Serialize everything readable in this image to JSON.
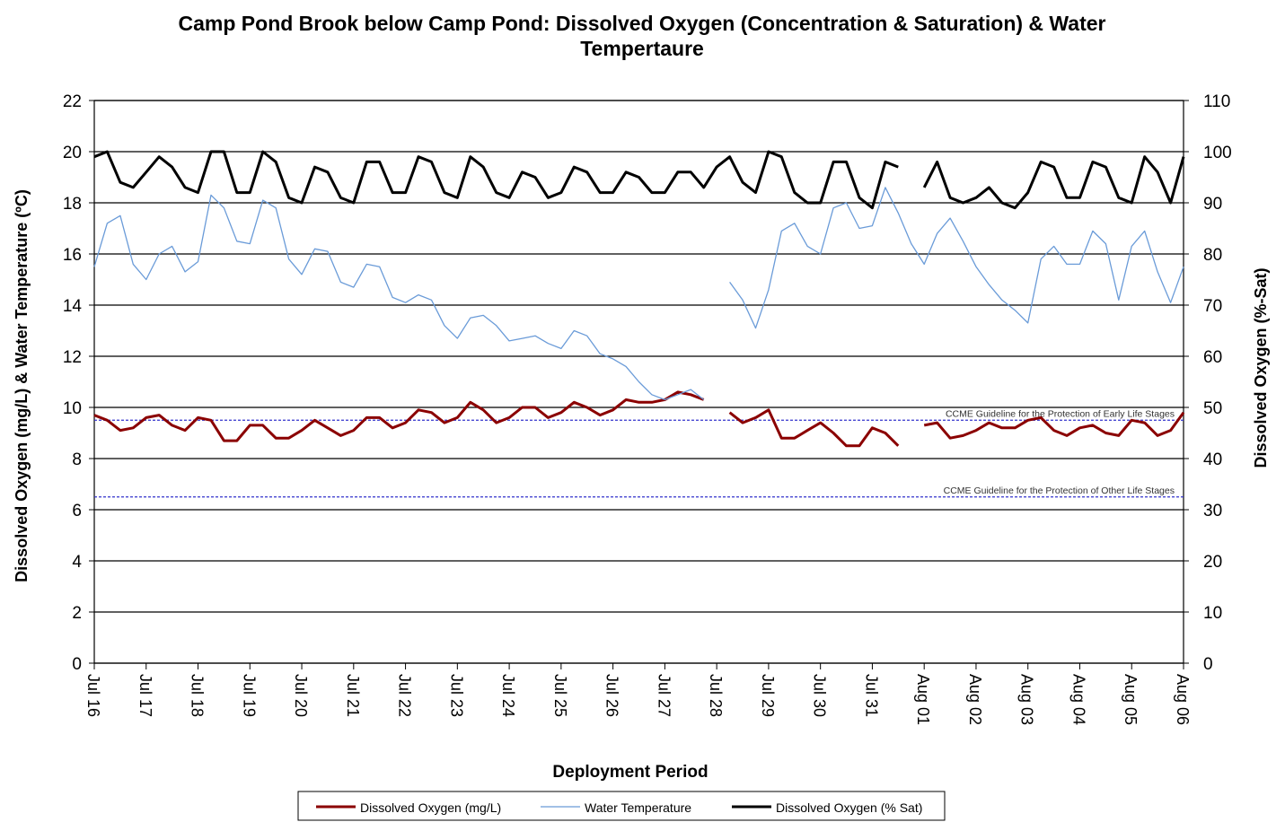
{
  "chart_data": {
    "type": "line",
    "title": "Camp Pond Brook below Camp Pond: Dissolved Oxygen (Concentration & Saturation) & Water Tempertaure",
    "xlabel": "Deployment Period",
    "ylabel": "Dissolved  Oxygen (mg/L) & Water Temperature (ºC)",
    "y2label": "Dissolved  Oxygen (%-Sat)",
    "xlim": [
      0,
      21
    ],
    "xticks": [
      {
        "value": 0,
        "label": "Jul 16"
      },
      {
        "value": 1,
        "label": "Jul 17"
      },
      {
        "value": 2,
        "label": "Jul 18"
      },
      {
        "value": 3,
        "label": "Jul 19"
      },
      {
        "value": 4,
        "label": "Jul 20"
      },
      {
        "value": 5,
        "label": "Jul 21"
      },
      {
        "value": 6,
        "label": "Jul 22"
      },
      {
        "value": 7,
        "label": "Jul 23"
      },
      {
        "value": 8,
        "label": "Jul 24"
      },
      {
        "value": 9,
        "label": "Jul 25"
      },
      {
        "value": 10,
        "label": "Jul 26"
      },
      {
        "value": 11,
        "label": "Jul 27"
      },
      {
        "value": 12,
        "label": "Jul 28"
      },
      {
        "value": 13,
        "label": "Jul 29"
      },
      {
        "value": 14,
        "label": "Jul 30"
      },
      {
        "value": 15,
        "label": "Jul 31"
      },
      {
        "value": 16,
        "label": "Aug 01"
      },
      {
        "value": 17,
        "label": "Aug 02"
      },
      {
        "value": 18,
        "label": "Aug 03"
      },
      {
        "value": 19,
        "label": "Aug 04"
      },
      {
        "value": 20,
        "label": "Aug 05"
      },
      {
        "value": 21,
        "label": "Aug 06"
      }
    ],
    "ylim": [
      0,
      22
    ],
    "yticks": [
      0,
      2,
      4,
      6,
      8,
      10,
      12,
      14,
      16,
      18,
      20,
      22
    ],
    "y2lim": [
      0,
      110
    ],
    "y2ticks": [
      0,
      10,
      20,
      30,
      40,
      50,
      60,
      70,
      80,
      90,
      100,
      110
    ],
    "grid": true,
    "x": [
      0,
      0.25,
      0.5,
      0.75,
      1,
      1.25,
      1.5,
      1.75,
      2,
      2.25,
      2.5,
      2.75,
      3,
      3.25,
      3.5,
      3.75,
      4,
      4.25,
      4.5,
      4.75,
      5,
      5.25,
      5.5,
      5.75,
      6,
      6.25,
      6.5,
      6.75,
      7,
      7.25,
      7.5,
      7.75,
      8,
      8.25,
      8.5,
      8.75,
      9,
      9.25,
      9.5,
      9.75,
      10,
      10.25,
      10.5,
      10.75,
      11,
      11.25,
      11.5,
      11.75,
      12,
      12.25,
      12.5,
      12.75,
      13,
      13.25,
      13.5,
      13.75,
      14,
      14.25,
      14.5,
      14.75,
      15,
      15.25,
      15.5,
      15.75,
      16,
      16.25,
      16.5,
      16.75,
      17,
      17.25,
      17.5,
      17.75,
      18,
      18.25,
      18.5,
      18.75,
      19,
      19.25,
      19.5,
      19.75,
      20,
      20.25,
      20.5,
      20.75,
      21
    ],
    "series": [
      {
        "name": "Dissolved Oxygen (mg/L)",
        "color": "#8b0000",
        "width": 3,
        "values": [
          9.7,
          9.5,
          9.1,
          9.2,
          9.6,
          9.7,
          9.3,
          9.1,
          9.6,
          9.5,
          8.7,
          8.7,
          9.3,
          9.3,
          8.8,
          8.8,
          9.1,
          9.5,
          9.2,
          8.9,
          9.1,
          9.6,
          9.6,
          9.2,
          9.4,
          9.9,
          9.8,
          9.4,
          9.6,
          10.2,
          9.9,
          9.4,
          9.6,
          10.0,
          10.0,
          9.6,
          9.8,
          10.2,
          10.0,
          9.7,
          9.9,
          10.3,
          10.2,
          10.2,
          10.3,
          10.6,
          10.5,
          10.3,
          null,
          9.8,
          9.4,
          9.6,
          9.9,
          8.8,
          8.8,
          9.1,
          9.4,
          9.0,
          8.5,
          8.5,
          9.2,
          9.0,
          8.5,
          null,
          9.3,
          9.4,
          8.8,
          8.9,
          9.1,
          9.4,
          9.2,
          9.2,
          9.5,
          9.6,
          9.1,
          8.9,
          9.2,
          9.3,
          9.0,
          8.9,
          9.5,
          9.4,
          8.9,
          9.1,
          9.8
        ]
      },
      {
        "name": "Water Temperature",
        "color": "#6a9bd8",
        "width": 1.3,
        "values": [
          15.5,
          17.2,
          17.5,
          15.6,
          15.0,
          16.0,
          16.3,
          15.3,
          15.7,
          18.3,
          17.8,
          16.5,
          16.4,
          18.1,
          17.8,
          15.8,
          15.2,
          16.2,
          16.1,
          14.9,
          14.7,
          15.6,
          15.5,
          14.3,
          14.1,
          14.4,
          14.2,
          13.2,
          12.7,
          13.5,
          13.6,
          13.2,
          12.6,
          12.7,
          12.8,
          12.5,
          12.3,
          13.0,
          12.8,
          12.1,
          11.9,
          11.6,
          11.0,
          10.5,
          10.3,
          10.5,
          10.7,
          10.3,
          null,
          14.9,
          14.2,
          13.1,
          14.6,
          16.9,
          17.2,
          16.3,
          16.0,
          17.8,
          18.0,
          17.0,
          17.1,
          18.6,
          17.6,
          16.4,
          15.6,
          16.8,
          17.4,
          16.5,
          15.5,
          14.8,
          14.2,
          13.8,
          13.3,
          15.8,
          16.3,
          15.6,
          15.6,
          16.9,
          16.4,
          14.2,
          16.3,
          16.9,
          15.3,
          14.1,
          15.5
        ]
      },
      {
        "name": "Dissolved Oxygen (% Sat)",
        "color": "#000000",
        "width": 3,
        "axis": "y2",
        "values": [
          99,
          100,
          94,
          93,
          96,
          99,
          97,
          93,
          92,
          100,
          100,
          92,
          92,
          100,
          98,
          91,
          90,
          97,
          96,
          91,
          90,
          98,
          98,
          92,
          92,
          99,
          98,
          92,
          91,
          99,
          97,
          92,
          91,
          96,
          95,
          91,
          92,
          97,
          96,
          92,
          92,
          96,
          95,
          92,
          92,
          96,
          96,
          93,
          97,
          99,
          94,
          92,
          100,
          99,
          92,
          90,
          90,
          98,
          98,
          91,
          89,
          98,
          97,
          null,
          93,
          98,
          91,
          90,
          91,
          93,
          90,
          89,
          92,
          98,
          97,
          91,
          91,
          98,
          97,
          91,
          90,
          99,
          96,
          90,
          99
        ]
      }
    ],
    "annotations": [
      {
        "text": "CCME Guideline for the Protection of Early Life Stages",
        "y": 9.5,
        "color": "#3333cc"
      },
      {
        "text": "CCME Guideline for the Protection of Other Life Stages",
        "y": 6.5,
        "color": "#3333cc"
      }
    ]
  }
}
